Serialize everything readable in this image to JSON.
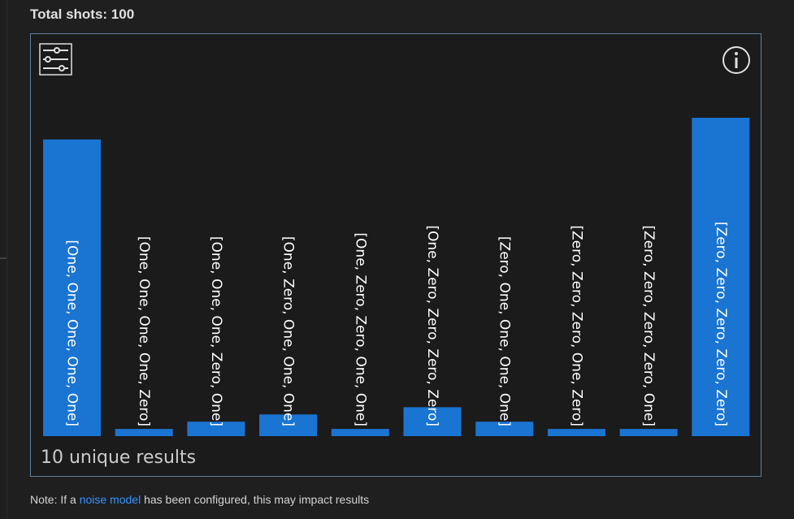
{
  "header": "Total shots: 100",
  "chart_data": {
    "type": "bar",
    "categories": [
      "[One, One, One, One, One]",
      "[One, One, One, One, Zero]",
      "[One, One, One, Zero, One]",
      "[One, Zero, One, One, One]",
      "[One, Zero, Zero, One, One]",
      "[One, Zero, Zero, Zero, Zero]",
      "[Zero, One, One, One, One]",
      "[Zero, Zero, Zero, One, Zero]",
      "[Zero, Zero, Zero, Zero, One]",
      "[Zero, Zero, Zero, Zero, Zero]"
    ],
    "values": [
      41,
      1,
      2,
      3,
      1,
      4,
      2,
      1,
      1,
      44
    ],
    "color": "#1a74d2"
  },
  "summary": "10 unique results",
  "note": {
    "before": "Note: If a ",
    "link": "noise model",
    "after": " has been configured, this may impact results"
  }
}
